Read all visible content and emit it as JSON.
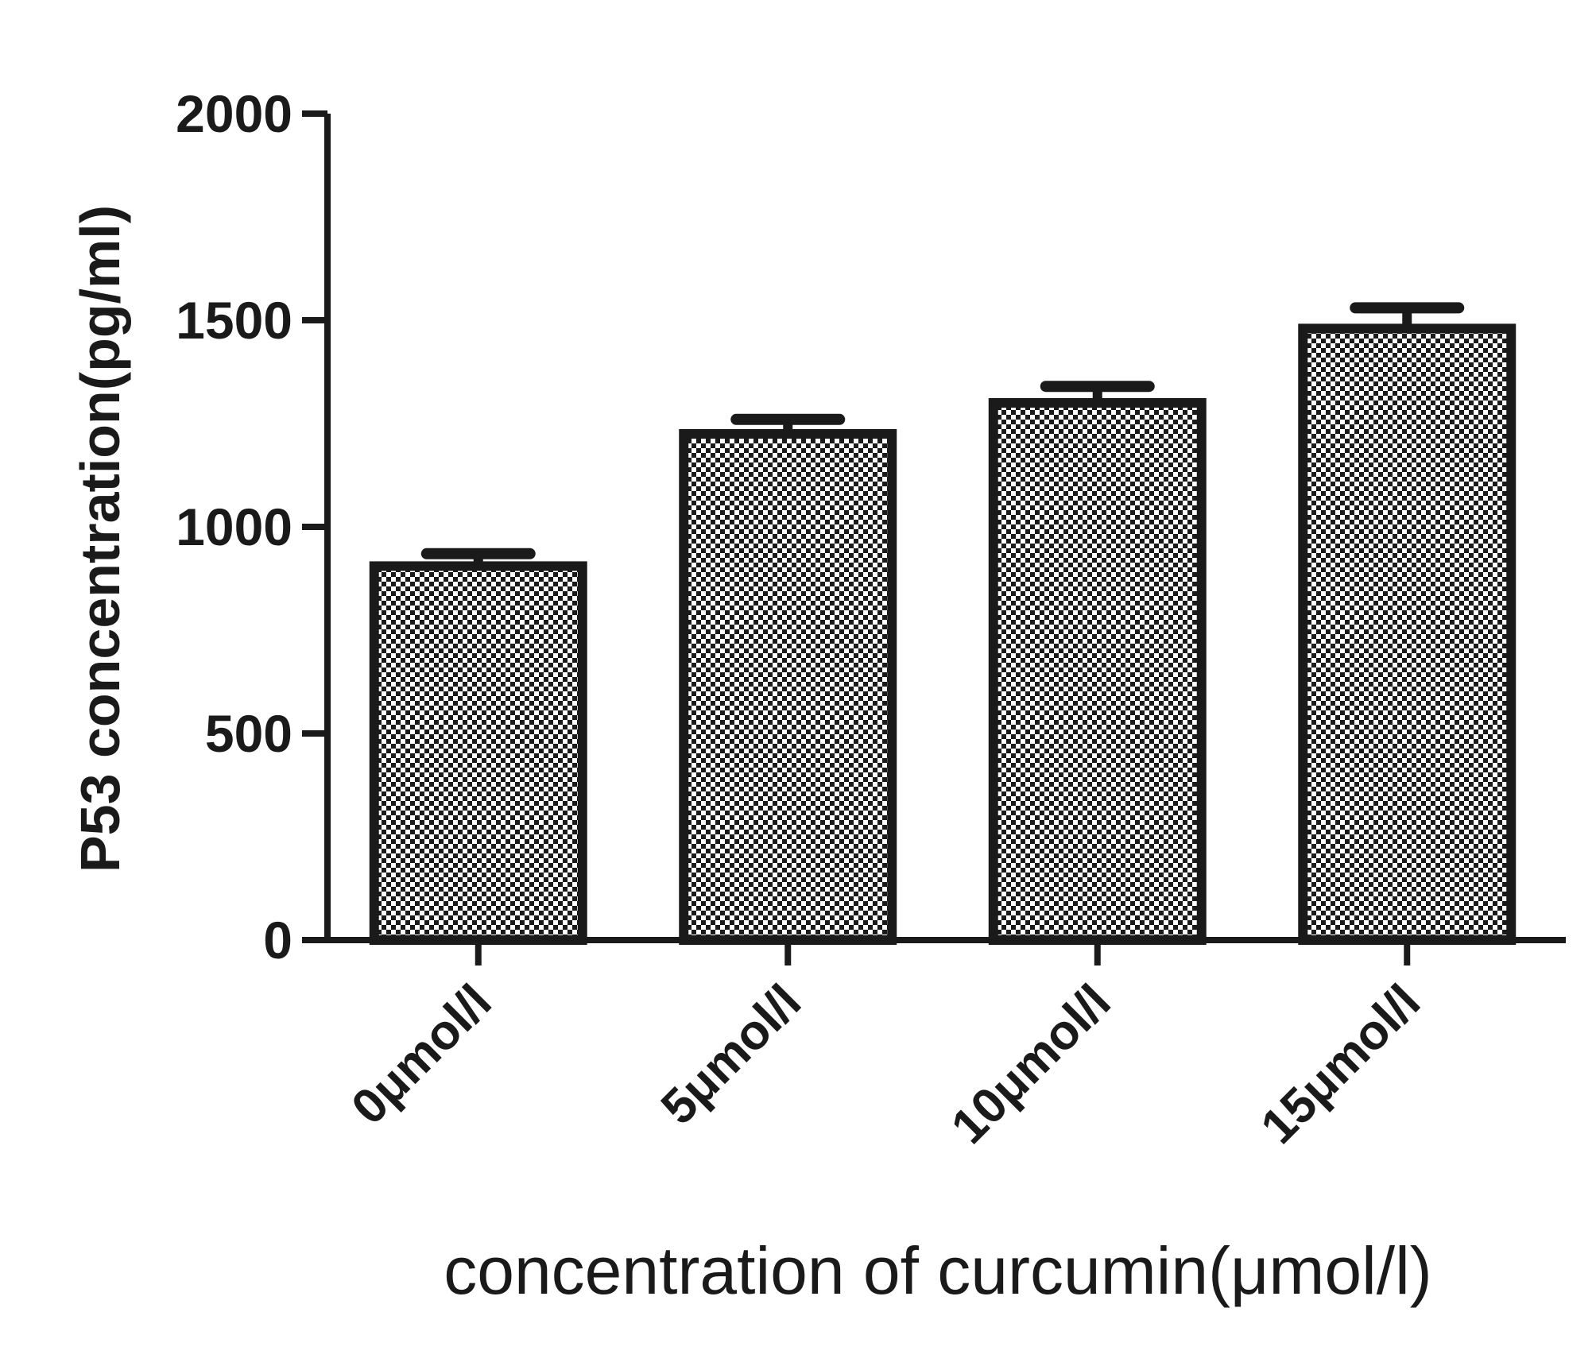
{
  "chart_data": {
    "type": "bar",
    "categories": [
      "0μmol/l",
      "5μmol/l",
      "10μmol/l",
      "15μmol/l"
    ],
    "values": [
      905,
      1225,
      1300,
      1480
    ],
    "errors": [
      30,
      35,
      40,
      50
    ],
    "xlabel": "concentration of curcumin(μmol/l)",
    "ylabel": "P53 concentration(pg/ml)",
    "ylim": [
      0,
      2000
    ],
    "yticks": [
      0,
      500,
      1000,
      1500,
      2000
    ],
    "grid": false,
    "colors": {
      "ink": "#1a1a1a",
      "pattern_dark": "#1a1a1a",
      "pattern_light": "#ffffff"
    }
  }
}
